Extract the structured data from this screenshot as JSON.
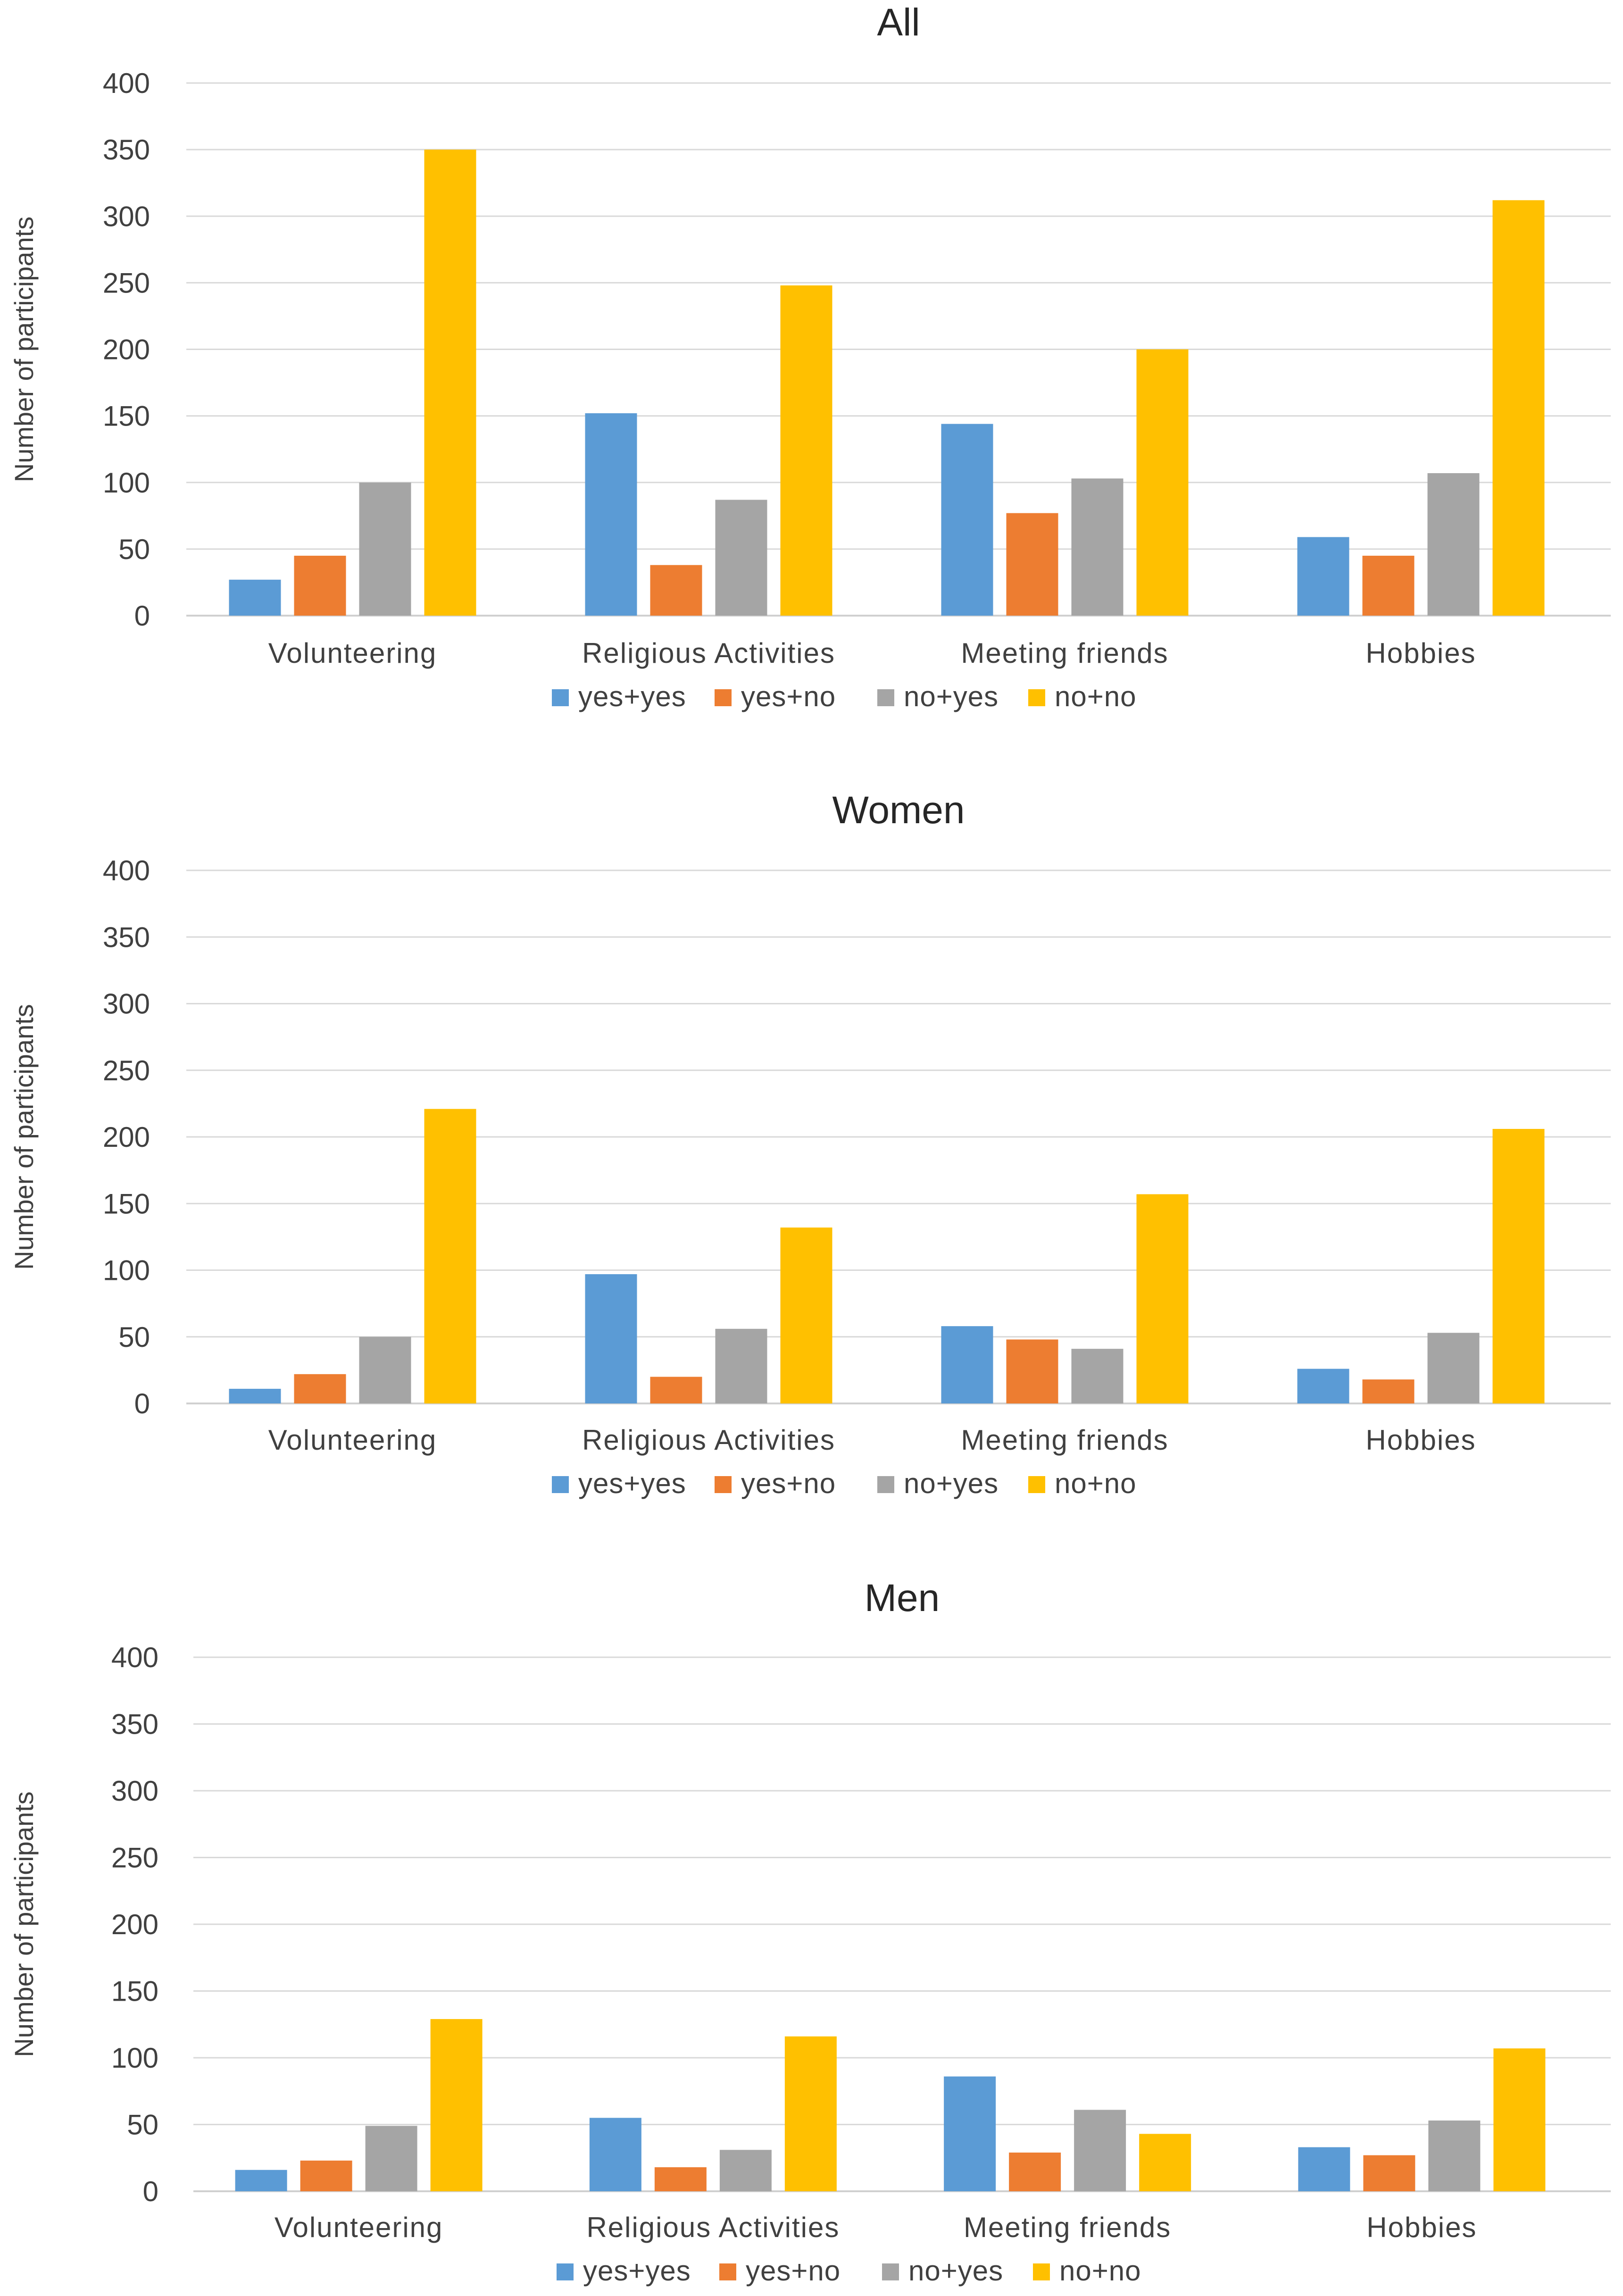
{
  "chart_data": [
    {
      "type": "bar",
      "title": "All",
      "xlabel": "",
      "ylabel": "Number of participants",
      "ylim": [
        0,
        400
      ],
      "yticks": [
        0,
        50,
        100,
        150,
        200,
        250,
        300,
        350,
        400
      ],
      "grid": true,
      "legend_position": "bottom",
      "categories": [
        "Volunteering",
        "Religious Activities",
        "Meeting friends",
        "Hobbies"
      ],
      "series": [
        {
          "name": "yes+yes",
          "color": "#5b9bd5",
          "values": [
            27,
            152,
            144,
            59
          ]
        },
        {
          "name": "yes+no",
          "color": "#ed7d31",
          "values": [
            45,
            38,
            77,
            45
          ]
        },
        {
          "name": "no+yes",
          "color": "#a5a5a5",
          "values": [
            100,
            87,
            103,
            107
          ]
        },
        {
          "name": "no+no",
          "color": "#ffc000",
          "values": [
            350,
            248,
            200,
            312
          ]
        }
      ]
    },
    {
      "type": "bar",
      "title": "Women",
      "xlabel": "",
      "ylabel": "Number of participants",
      "ylim": [
        0,
        400
      ],
      "yticks": [
        0,
        50,
        100,
        150,
        200,
        250,
        300,
        350,
        400
      ],
      "grid": true,
      "legend_position": "bottom",
      "categories": [
        "Volunteering",
        "Religious Activities",
        "Meeting friends",
        "Hobbies"
      ],
      "series": [
        {
          "name": "yes+yes",
          "color": "#5b9bd5",
          "values": [
            11,
            97,
            58,
            26
          ]
        },
        {
          "name": "yes+no",
          "color": "#ed7d31",
          "values": [
            22,
            20,
            48,
            18
          ]
        },
        {
          "name": "no+yes",
          "color": "#a5a5a5",
          "values": [
            50,
            56,
            41,
            53
          ]
        },
        {
          "name": "no+no",
          "color": "#ffc000",
          "values": [
            221,
            132,
            157,
            206
          ]
        }
      ]
    },
    {
      "type": "bar",
      "title": "Men",
      "xlabel": "",
      "ylabel": "Number of participants",
      "ylim": [
        0,
        400
      ],
      "yticks": [
        0,
        50,
        100,
        150,
        200,
        250,
        300,
        350,
        400
      ],
      "grid": true,
      "legend_position": "bottom",
      "categories": [
        "Volunteering",
        "Religious Activities",
        "Meeting friends",
        "Hobbies"
      ],
      "series": [
        {
          "name": "yes+yes",
          "color": "#5b9bd5",
          "values": [
            16,
            55,
            86,
            33
          ]
        },
        {
          "name": "yes+no",
          "color": "#ed7d31",
          "values": [
            23,
            18,
            29,
            27
          ]
        },
        {
          "name": "no+yes",
          "color": "#a5a5a5",
          "values": [
            49,
            31,
            61,
            53
          ]
        },
        {
          "name": "no+no",
          "color": "#ffc000",
          "values": [
            129,
            116,
            43,
            107
          ]
        }
      ]
    }
  ]
}
